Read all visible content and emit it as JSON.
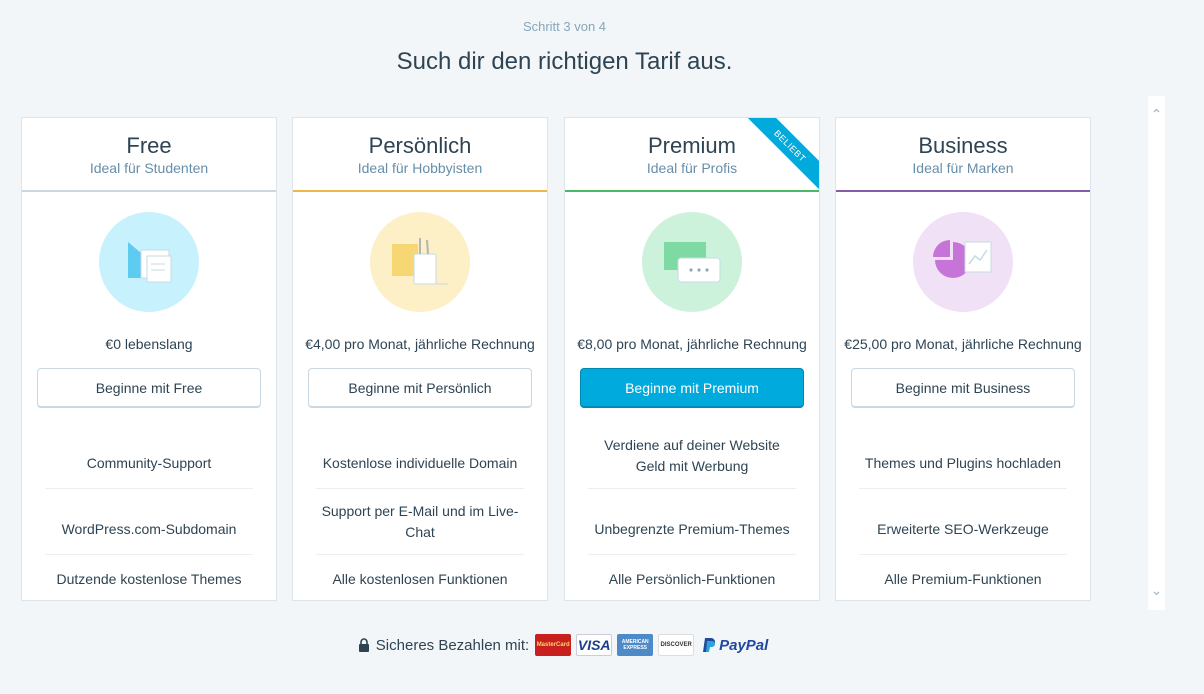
{
  "header": {
    "step": "Schritt 3 von 4",
    "title": "Such dir den richtigen Tarif aus."
  },
  "plans": [
    {
      "name": "Free",
      "tagline": "Ideal für Studenten",
      "price": "€0 lebenslang",
      "cta": "Beginne mit Free",
      "accent": "#c8d7e1",
      "features": [
        "Community-Support",
        "WordPress.com-Subdomain",
        "Dutzende kostenlose Themes"
      ]
    },
    {
      "name": "Persönlich",
      "tagline": "Ideal für Hobbyisten",
      "price": "€4,00 pro Monat, jährliche Rechnung",
      "cta": "Beginne mit Persönlich",
      "accent": "#f0b849",
      "features": [
        "Kostenlose individuelle Domain",
        "Support per E-Mail und im Live-Chat",
        "Alle kostenlosen Funktionen"
      ]
    },
    {
      "name": "Premium",
      "tagline": "Ideal für Profis",
      "price": "€8,00 pro Monat, jährliche Rechnung",
      "cta": "Beginne mit Premium",
      "accent": "#4ab866",
      "badge": "BELIEBT",
      "features": [
        "Verdiene auf deiner Website Geld mit Werbung",
        "Unbegrenzte Premium-Themes",
        "Alle Persönlich-Funktionen"
      ]
    },
    {
      "name": "Business",
      "tagline": "Ideal für Marken",
      "price": "€25,00 pro Monat, jährliche Rechnung",
      "cta": "Beginne mit Business",
      "accent": "#855da6",
      "features": [
        "Themes und Plugins hochladen",
        "Erweiterte SEO-Werkzeuge",
        "Alle Premium-Funktionen"
      ]
    }
  ],
  "footer": {
    "secure_label": "Sicheres Bezahlen mit:",
    "payment_methods": [
      "MasterCard",
      "VISA",
      "AMERICAN EXPRESS",
      "DISCOVER",
      "PayPal"
    ]
  },
  "icons": {
    "free": "chat-bubble-illustration",
    "personal": "pencil-cup-illustration",
    "premium": "message-bubbles-illustration",
    "business": "pie-chart-illustration",
    "lock": "lock-icon"
  }
}
